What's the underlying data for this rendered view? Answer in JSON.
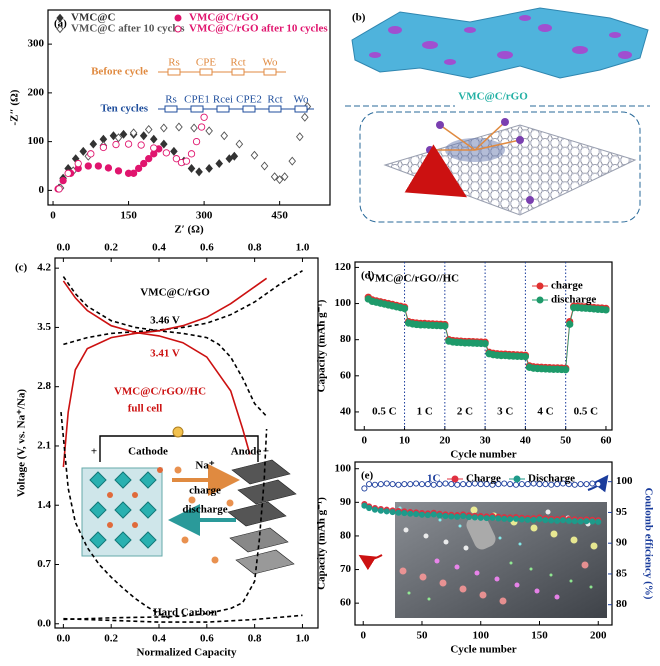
{
  "illustration": {
    "panel_label": "(b)",
    "title": "VMC@C/rGO"
  },
  "chart_data": [
    {
      "type": "scatter",
      "panel_label": "(a)",
      "xlabel": "Z′ (Ω)",
      "ylabel": "-Z″ (Ω)",
      "xlim": [
        -10,
        550
      ],
      "ylim": [
        -30,
        370
      ],
      "xticks": [
        0,
        150,
        300,
        450
      ],
      "yticks": [
        0,
        100,
        200,
        300
      ],
      "series": [
        {
          "name": "VMC@C",
          "color": "#333333",
          "marker": "diamond",
          "filled": true,
          "x": [
            12,
            20,
            30,
            45,
            60,
            80,
            100,
            120,
            140,
            160,
            180,
            200,
            220,
            240,
            260,
            275,
            290,
            310,
            330,
            350,
            360
          ],
          "values": [
            5,
            25,
            45,
            65,
            80,
            95,
            105,
            112,
            115,
            115,
            112,
            105,
            95,
            80,
            60,
            45,
            38,
            45,
            55,
            65,
            70
          ]
        },
        {
          "name": "VMC@C after 10 cycles",
          "color": "#555555",
          "marker": "diamond",
          "filled": false,
          "x": [
            15,
            40,
            70,
            100,
            130,
            160,
            190,
            220,
            250,
            280,
            310,
            340,
            370,
            400,
            420,
            440,
            450,
            460,
            475,
            490,
            500,
            505
          ],
          "values": [
            5,
            40,
            70,
            92,
            108,
            118,
            125,
            128,
            130,
            128,
            122,
            112,
            95,
            72,
            50,
            28,
            22,
            28,
            60,
            110,
            150,
            172
          ]
        },
        {
          "name": "VMC@C/rGO",
          "color": "#e0156e",
          "marker": "circle",
          "filled": true,
          "x": [
            10,
            20,
            35,
            50,
            70,
            90,
            110,
            130,
            150,
            160,
            170,
            180,
            190,
            200,
            210
          ],
          "values": [
            3,
            20,
            35,
            45,
            50,
            50,
            46,
            40,
            35,
            35,
            45,
            55,
            65,
            75,
            85
          ]
        },
        {
          "name": "VMC@C/rGO after 10 cycles",
          "color": "#e0156e",
          "marker": "circle",
          "filled": false,
          "x": [
            12,
            30,
            50,
            75,
            100,
            125,
            150,
            175,
            200,
            225,
            245,
            255,
            265,
            275,
            285,
            295,
            300
          ],
          "values": [
            3,
            35,
            55,
            75,
            88,
            94,
            95,
            93,
            87,
            77,
            65,
            57,
            60,
            75,
            100,
            130,
            150
          ]
        }
      ],
      "circuits": [
        {
          "title": "Before cycle",
          "color": "#e08a40",
          "elements": [
            "Rs",
            "CPE",
            "Rct",
            "Wo"
          ]
        },
        {
          "title": "Ten cycles",
          "color": "#1f4e9c",
          "elements": [
            "Rs",
            "CPE1",
            "Rcei",
            "CPE2",
            "Rct",
            "Wo"
          ]
        }
      ]
    },
    {
      "type": "line",
      "panel_label": "(c)",
      "xlabel": "Normalized Capacity",
      "ylabel": "Voltage (V, vs. Na⁺/Na)",
      "xlim": [
        -0.035,
        1.065
      ],
      "ylim": [
        -0.05,
        4.32
      ],
      "xticks": [
        {
          "value": 0,
          "label": "0.0"
        },
        0.2,
        0.4,
        0.6,
        0.8,
        {
          "value": 1,
          "label": "1.0"
        }
      ],
      "x2ticks": [
        {
          "value": 0,
          "label": "0.0"
        },
        0.2,
        0.4,
        0.6,
        0.8,
        {
          "value": 1,
          "label": "1.0"
        }
      ],
      "yticks": [
        {
          "value": 0,
          "label": "0.0"
        },
        0.7,
        1.4,
        2.1,
        2.8,
        3.5,
        4.2
      ],
      "series": [
        {
          "color": "#000000",
          "dashed": true,
          "x": [
            0,
            0.05,
            0.1,
            0.2,
            0.3,
            0.4,
            0.5,
            0.6,
            0.65,
            0.7,
            0.75,
            0.8,
            0.85
          ],
          "values": [
            4.1,
            3.9,
            3.75,
            3.58,
            3.5,
            3.46,
            3.43,
            3.38,
            3.3,
            3.15,
            2.9,
            2.6,
            2.45
          ]
        },
        {
          "color": "#000000",
          "dashed": true,
          "x": [
            0,
            0.1,
            0.2,
            0.3,
            0.4,
            0.5,
            0.6,
            0.7,
            0.8,
            0.9,
            1.0
          ],
          "values": [
            3.3,
            3.38,
            3.43,
            3.45,
            3.47,
            3.5,
            3.55,
            3.65,
            3.8,
            4.0,
            4.17
          ]
        },
        {
          "color": "#cc1111",
          "dashed": false,
          "x": [
            0,
            0.02,
            0.05,
            0.1,
            0.2,
            0.3,
            0.4,
            0.5,
            0.6,
            0.7,
            0.8,
            0.85
          ],
          "values": [
            1.85,
            2.5,
            3.0,
            3.25,
            3.38,
            3.43,
            3.46,
            3.52,
            3.62,
            3.78,
            3.98,
            4.08
          ]
        },
        {
          "color": "#cc1111",
          "dashed": false,
          "x": [
            0,
            0.05,
            0.1,
            0.2,
            0.3,
            0.4,
            0.5,
            0.6,
            0.7,
            0.75,
            0.78
          ],
          "values": [
            4.05,
            3.85,
            3.7,
            3.52,
            3.44,
            3.4,
            3.32,
            3.15,
            2.75,
            2.3,
            2.0
          ]
        },
        {
          "color": "#000000",
          "dashed": true,
          "x": [
            -0.01,
            0.02,
            0.05,
            0.1,
            0.15,
            0.2,
            0.25,
            0.3,
            0.35,
            0.4,
            0.45
          ],
          "values": [
            2.5,
            1.6,
            1.2,
            0.9,
            0.7,
            0.55,
            0.42,
            0.3,
            0.2,
            0.12,
            0.06
          ]
        },
        {
          "color": "#000000",
          "dashed": true,
          "x": [
            0,
            0.2,
            0.4,
            0.5,
            0.6,
            0.7,
            0.75,
            0.8,
            0.82,
            0.84,
            0.85
          ],
          "values": [
            0.05,
            0.07,
            0.08,
            0.09,
            0.12,
            0.18,
            0.25,
            0.5,
            1.0,
            1.7,
            2.3
          ]
        },
        {
          "color": "#000000",
          "dashed": true,
          "x": [
            0,
            0.2,
            0.4,
            0.6,
            0.8,
            1.0
          ],
          "values": [
            0.06,
            0.04,
            0.02,
            0.02,
            0.05,
            0.1
          ]
        }
      ],
      "annotations": [
        {
          "text": "VMC@C/rGO",
          "color": "#000000"
        },
        {
          "text": "3.46 V",
          "color": "#000000"
        },
        {
          "text": "3.41 V",
          "color": "#cc1111"
        },
        {
          "text": "VMC@C/rGO//HC",
          "color": "#cc1111"
        },
        {
          "text": "full cell",
          "color": "#cc1111"
        },
        {
          "text": "Hard Carbon",
          "color": "#000000"
        }
      ],
      "inset_labels": [
        "Cathode",
        "Anode",
        "Na⁺",
        "charge",
        "discharge",
        "+",
        "−"
      ]
    },
    {
      "type": "scatter",
      "panel_label": "(d)",
      "xlabel": "Cycle number",
      "ylabel": "Capacity (mAh g⁻¹)",
      "xlim": [
        -2.3,
        61.5
      ],
      "ylim": [
        30,
        123
      ],
      "xticks": [
        0,
        10,
        20,
        30,
        40,
        50,
        60
      ],
      "yticks": [
        40,
        60,
        80,
        100,
        120
      ],
      "annotation": "VMC@C/rGO//HC",
      "vlines": [
        10,
        20,
        30,
        40,
        50
      ],
      "rate_labels": [
        "0.5 C",
        "1 C",
        "2 C",
        "3 C",
        "4 C",
        "0.5 C"
      ],
      "x": [
        1,
        2,
        3,
        4,
        5,
        6,
        7,
        8,
        9,
        10,
        11,
        12,
        13,
        14,
        15,
        16,
        17,
        18,
        19,
        20,
        21,
        22,
        23,
        24,
        25,
        26,
        27,
        28,
        29,
        30,
        31,
        32,
        33,
        34,
        35,
        36,
        37,
        38,
        39,
        40,
        41,
        42,
        43,
        44,
        45,
        46,
        47,
        48,
        49,
        50,
        51,
        52,
        53,
        54,
        55,
        56,
        57,
        58,
        59,
        60
      ],
      "series": [
        {
          "name": "charge",
          "color": "#e03030",
          "marker": "circle",
          "filled": true,
          "connect": true,
          "values": [
            103.5,
            102,
            101.5,
            101,
            100.5,
            100,
            99.5,
            99,
            98.5,
            98,
            90,
            89.5,
            89.2,
            89,
            89,
            88.8,
            88.7,
            88.6,
            88.5,
            88.4,
            80,
            79.5,
            79.3,
            79.2,
            79,
            79,
            78.9,
            78.8,
            78.7,
            78.6,
            73,
            72.5,
            72.2,
            72,
            72,
            71.8,
            71.7,
            71.6,
            71.5,
            71.4,
            65.5,
            65,
            64.8,
            64.7,
            64.6,
            64.5,
            64.4,
            64.4,
            64.3,
            64.2,
            90,
            98.5,
            98.5,
            98.3,
            98.2,
            98,
            97.8,
            97.6,
            97.5,
            97.3
          ]
        },
        {
          "name": "discharge",
          "color": "#1e9a6a",
          "marker": "circle",
          "filled": true,
          "connect": true,
          "values": [
            102.5,
            101.2,
            100.7,
            100.2,
            99.7,
            99.2,
            98.7,
            98.2,
            97.7,
            97.2,
            89.2,
            88.7,
            88.4,
            88.2,
            88.2,
            88.0,
            87.9,
            87.8,
            87.7,
            87.6,
            79.2,
            78.7,
            78.5,
            78.4,
            78.2,
            78.2,
            78.1,
            78.0,
            77.9,
            77.8,
            72.2,
            71.7,
            71.4,
            71.2,
            71.2,
            71.0,
            70.9,
            70.8,
            70.7,
            70.6,
            64.7,
            64.2,
            64.0,
            63.9,
            63.8,
            63.7,
            63.6,
            63.6,
            63.5,
            63.4,
            88.5,
            97.7,
            97.7,
            97.5,
            97.4,
            97.2,
            97.0,
            96.8,
            96.7,
            96.5
          ]
        }
      ]
    },
    {
      "type": "scatter",
      "panel_label": "(e)",
      "xlabel": "Cycle number",
      "ylabel": "Capacity (mAh g⁻¹)",
      "y2label": "Coulomb efficiency (%)",
      "xlim": [
        -7,
        211.7
      ],
      "ylim": [
        53.5,
        102
      ],
      "y2lim": [
        76.7,
        103.2
      ],
      "xticks": [
        0,
        50,
        100,
        150,
        200
      ],
      "yticks": [
        60,
        70,
        80,
        90,
        100
      ],
      "y2ticks": [
        80,
        85,
        90,
        95,
        100
      ],
      "annotation": "1C",
      "x": [
        1,
        5,
        10,
        15,
        20,
        25,
        30,
        35,
        40,
        45,
        50,
        55,
        60,
        65,
        70,
        75,
        80,
        85,
        90,
        95,
        100,
        105,
        110,
        115,
        120,
        125,
        130,
        135,
        140,
        145,
        150,
        155,
        160,
        165,
        170,
        175,
        180,
        185,
        190,
        195,
        200
      ],
      "series": [
        {
          "name": "Charge",
          "color": "#e03040",
          "marker": "circle",
          "filled": true,
          "connect": true,
          "values": [
            89.5,
            88.8,
            88.3,
            88.0,
            87.8,
            87.6,
            87.4,
            87.3,
            87.1,
            87.0,
            86.8,
            86.7,
            86.9,
            86.6,
            86.4,
            86.3,
            86.2,
            86.4,
            86.1,
            86.0,
            85.9,
            85.8,
            85.9,
            85.7,
            85.6,
            85.5,
            85.6,
            85.4,
            85.3,
            85.3,
            85.5,
            85.2,
            85.1,
            85.0,
            85.2,
            85.0,
            84.9,
            84.8,
            84.9,
            84.8,
            84.7
          ]
        },
        {
          "name": "Discharge",
          "color": "#1e9a8a",
          "marker": "circle",
          "filled": true,
          "connect": true,
          "values": [
            89.0,
            88.3,
            87.8,
            87.5,
            87.3,
            87.1,
            86.9,
            86.8,
            86.6,
            86.5,
            86.3,
            86.2,
            86.4,
            86.1,
            85.9,
            85.8,
            85.7,
            85.9,
            85.6,
            85.5,
            85.4,
            85.3,
            85.4,
            85.2,
            85.1,
            85.0,
            85.1,
            84.9,
            84.8,
            84.8,
            85.0,
            84.7,
            84.6,
            84.5,
            84.7,
            84.5,
            84.4,
            84.3,
            84.4,
            84.3,
            84.2
          ]
        },
        {
          "color": "#1a3c9c",
          "marker": "circle",
          "filled": false,
          "axis": "y2",
          "values": [
            98.9,
            99.6,
            99.5,
            99.6,
            99.7,
            99.6,
            99.5,
            99.6,
            99.6,
            99.7,
            99.6,
            99.6,
            99.5,
            99.6,
            99.7,
            99.6,
            99.5,
            99.6,
            99.6,
            99.7,
            99.6,
            99.6,
            99.5,
            99.6,
            99.7,
            99.6,
            99.5,
            99.6,
            99.6,
            99.7,
            99.6,
            99.6,
            99.5,
            99.6,
            99.7,
            99.6,
            99.5,
            99.6,
            99.6,
            99.7,
            99.6
          ]
        }
      ]
    }
  ]
}
